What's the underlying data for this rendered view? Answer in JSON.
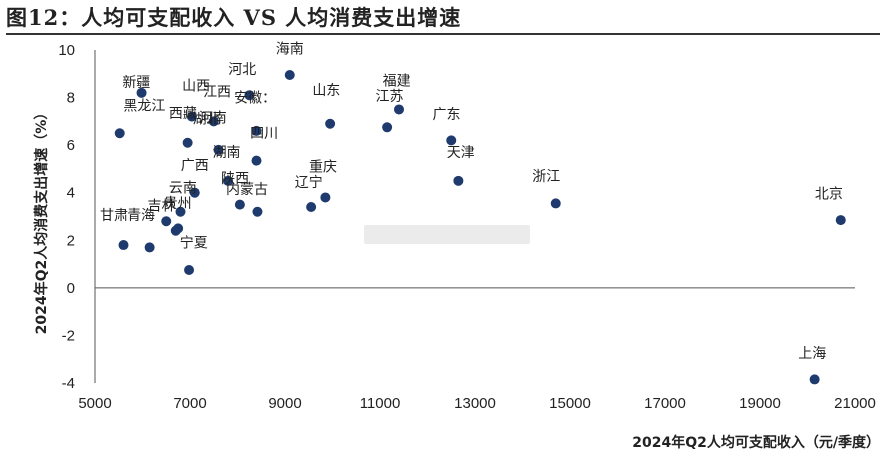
{
  "figure": {
    "title": "图12：人均可支配收入 VS 人均消费支出增速"
  },
  "chart_data": {
    "type": "scatter",
    "title": "图12：人均可支配收入 VS 人均消费支出增速",
    "xlabel": "2024年Q2人均可支配收入（元/季度）",
    "ylabel": "2024年Q2人均消费支出增速（%）",
    "xlim": [
      5000,
      21000
    ],
    "ylim": [
      -4,
      10
    ],
    "xticks": [
      5000,
      7000,
      9000,
      11000,
      13000,
      15000,
      17000,
      19000,
      21000
    ],
    "yticks": [
      -4,
      -2,
      0,
      2,
      4,
      6,
      8,
      10
    ],
    "grid": false,
    "marker_color": "#1f3b6e",
    "points": [
      {
        "label": "新疆",
        "x": 5980,
        "y": 8.2
      },
      {
        "label": "黑龙江",
        "x": 5520,
        "y": 6.5
      },
      {
        "label": "甘肃",
        "x": 5600,
        "y": 1.8
      },
      {
        "label": "青海",
        "x": 6150,
        "y": 1.7
      },
      {
        "label": "吉林",
        "x": 6500,
        "y": 2.8
      },
      {
        "label": "贵州",
        "x": 6700,
        "y": 2.4
      },
      {
        "label": "西藏",
        "x": 6750,
        "y": 2.5
      },
      {
        "label": "云南",
        "x": 6800,
        "y": 3.2
      },
      {
        "label": "山西",
        "x": 6950,
        "y": 6.1
      },
      {
        "label": "宁夏",
        "x": 6980,
        "y": 0.75
      },
      {
        "label": "广西",
        "x": 7100,
        "y": 4.0
      },
      {
        "label": "江西",
        "x": 7040,
        "y": 7.2
      },
      {
        "label": "河南",
        "x": 7500,
        "y": 7.0
      },
      {
        "label": "湖北",
        "x": 7800,
        "y": 4.5
      },
      {
        "label": "湖南",
        "x": 7600,
        "y": 5.8
      },
      {
        "label": "陕西",
        "x": 8050,
        "y": 3.5
      },
      {
        "label": "河北",
        "x": 8250,
        "y": 8.1
      },
      {
        "label": "安徽",
        "x": 8400,
        "y": 6.6
      },
      {
        "label": "四川",
        "x": 8400,
        "y": 5.35
      },
      {
        "label": "内蒙古",
        "x": 8420,
        "y": 3.2
      },
      {
        "label": "海南",
        "x": 9100,
        "y": 8.95
      },
      {
        "label": "山东",
        "x": 9950,
        "y": 6.9
      },
      {
        "label": "重庆",
        "x": 9850,
        "y": 3.8
      },
      {
        "label": "辽宁",
        "x": 9550,
        "y": 3.4
      },
      {
        "label": "江苏",
        "x": 11150,
        "y": 6.75
      },
      {
        "label": "福建",
        "x": 11400,
        "y": 7.5
      },
      {
        "label": "广东",
        "x": 12500,
        "y": 6.2
      },
      {
        "label": "天津",
        "x": 12650,
        "y": 4.5
      },
      {
        "label": "浙江",
        "x": 14700,
        "y": 3.55
      },
      {
        "label": "北京",
        "x": 20700,
        "y": 2.85
      },
      {
        "label": "上海",
        "x": 20150,
        "y": -3.85
      }
    ],
    "annotations": [
      {
        "text": "新疆",
        "x": 5870,
        "y": 8.45
      },
      {
        "text": "黑龙江",
        "x": 6040,
        "y": 7.45
      },
      {
        "text": "山西",
        "x": 7130,
        "y": 8.3
      },
      {
        "text": "江西",
        "x": 7570,
        "y": 8.05
      },
      {
        "text": "西藏",
        "x": 6850,
        "y": 7.15
      },
      {
        "text": "河南",
        "x": 7480,
        "y": 6.95
      },
      {
        "text": "湖北",
        "x": 7350,
        "y": 6.9
      },
      {
        "text": "河北",
        "x": 8100,
        "y": 9.0
      },
      {
        "text": "海南",
        "x": 9100,
        "y": 9.85
      },
      {
        "text": "安徽：",
        "x": 8370,
        "y": 7.8
      },
      {
        "text": "山东",
        "x": 9870,
        "y": 8.1
      },
      {
        "text": "福建",
        "x": 11350,
        "y": 8.5
      },
      {
        "text": "江苏",
        "x": 11200,
        "y": 7.85
      },
      {
        "text": "广东",
        "x": 12400,
        "y": 7.1
      },
      {
        "text": "四川",
        "x": 8560,
        "y": 6.3
      },
      {
        "text": "湖南",
        "x": 7770,
        "y": 5.5
      },
      {
        "text": "天津",
        "x": 12700,
        "y": 5.5
      },
      {
        "text": "广西",
        "x": 7100,
        "y": 4.95
      },
      {
        "text": "重庆",
        "x": 9800,
        "y": 4.9
      },
      {
        "text": "浙江",
        "x": 14500,
        "y": 4.5
      },
      {
        "text": "北京",
        "x": 20450,
        "y": 3.75
      },
      {
        "text": "陕西",
        "x": 7950,
        "y": 4.4
      },
      {
        "text": "内蒙古",
        "x": 8200,
        "y": 3.95
      },
      {
        "text": "辽宁",
        "x": 9500,
        "y": 4.25
      },
      {
        "text": "云南",
        "x": 6850,
        "y": 4.0
      },
      {
        "text": "吉林",
        "x": 6400,
        "y": 3.25
      },
      {
        "text": "贵州",
        "x": 6740,
        "y": 3.35
      },
      {
        "text": "甘肃",
        "x": 5400,
        "y": 2.85
      },
      {
        "text": "青海",
        "x": 5970,
        "y": 2.85
      },
      {
        "text": "宁夏",
        "x": 7080,
        "y": 1.7
      },
      {
        "text": "上海",
        "x": 20100,
        "y": -2.95
      }
    ]
  }
}
